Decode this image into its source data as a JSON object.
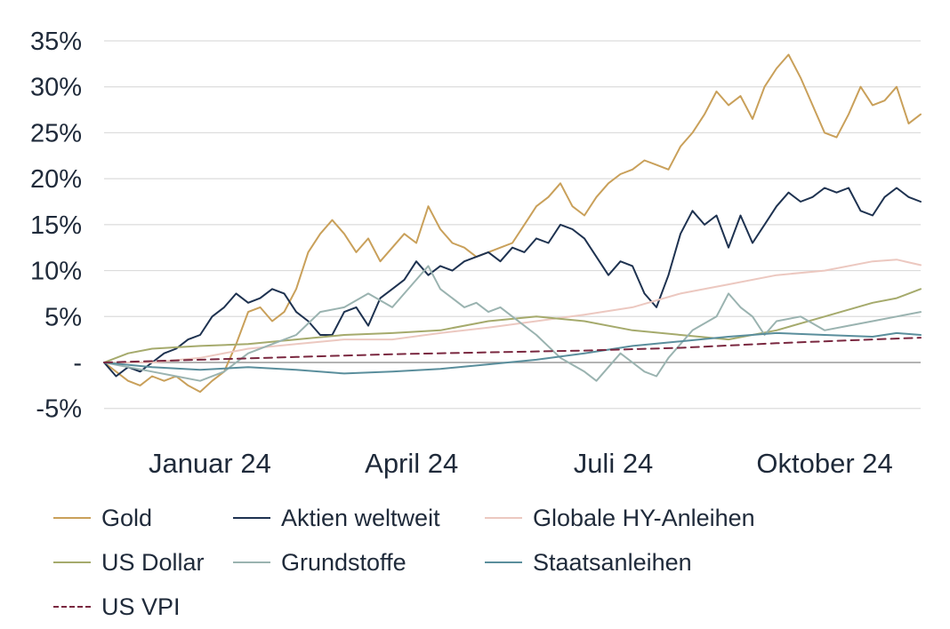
{
  "chart_data": {
    "type": "line",
    "title": "",
    "xlabel": "",
    "ylabel": "",
    "ylim": [
      -7,
      35.5
    ],
    "x_range_days": [
      0,
      340
    ],
    "y_ticks": [
      {
        "value": 35,
        "label": "35%"
      },
      {
        "value": 30,
        "label": "30%"
      },
      {
        "value": 25,
        "label": "25%"
      },
      {
        "value": 20,
        "label": "20%"
      },
      {
        "value": 15,
        "label": "15%"
      },
      {
        "value": 10,
        "label": "10%"
      },
      {
        "value": 5,
        "label": "5%"
      },
      {
        "value": 0,
        "label": "-"
      },
      {
        "value": -5,
        "label": "-5%"
      }
    ],
    "x_ticks": [
      {
        "day": 27,
        "label": "Januar 24"
      },
      {
        "day": 111,
        "label": "April 24"
      },
      {
        "day": 195,
        "label": "Juli 24"
      },
      {
        "day": 283,
        "label": "Oktober 24"
      }
    ],
    "grid": true,
    "series": [
      {
        "name": "Gold",
        "color": "#c9a05a",
        "dash": false,
        "points": [
          [
            0,
            0
          ],
          [
            5,
            -1
          ],
          [
            10,
            -2
          ],
          [
            15,
            -2.5
          ],
          [
            20,
            -1.5
          ],
          [
            25,
            -2
          ],
          [
            30,
            -1.5
          ],
          [
            35,
            -2.5
          ],
          [
            40,
            -3.2
          ],
          [
            45,
            -2
          ],
          [
            50,
            -1
          ],
          [
            55,
            2
          ],
          [
            60,
            5.5
          ],
          [
            65,
            6
          ],
          [
            70,
            4.5
          ],
          [
            75,
            5.5
          ],
          [
            80,
            8
          ],
          [
            85,
            12
          ],
          [
            90,
            14
          ],
          [
            95,
            15.5
          ],
          [
            100,
            14
          ],
          [
            105,
            12
          ],
          [
            110,
            13.5
          ],
          [
            115,
            11
          ],
          [
            120,
            12.5
          ],
          [
            125,
            14
          ],
          [
            130,
            13
          ],
          [
            135,
            17
          ],
          [
            140,
            14.5
          ],
          [
            145,
            13
          ],
          [
            150,
            12.5
          ],
          [
            155,
            11.5
          ],
          [
            160,
            12
          ],
          [
            165,
            12.5
          ],
          [
            170,
            13
          ],
          [
            175,
            15
          ],
          [
            180,
            17
          ],
          [
            185,
            18
          ],
          [
            190,
            19.5
          ],
          [
            195,
            17
          ],
          [
            200,
            16
          ],
          [
            205,
            18
          ],
          [
            210,
            19.5
          ],
          [
            215,
            20.5
          ],
          [
            220,
            21
          ],
          [
            225,
            22
          ],
          [
            230,
            21.5
          ],
          [
            235,
            21
          ],
          [
            240,
            23.5
          ],
          [
            245,
            25
          ],
          [
            250,
            27
          ],
          [
            255,
            29.5
          ],
          [
            260,
            28
          ],
          [
            265,
            29
          ],
          [
            270,
            26.5
          ],
          [
            275,
            30
          ],
          [
            280,
            32
          ],
          [
            285,
            33.5
          ],
          [
            290,
            31
          ],
          [
            295,
            28
          ],
          [
            300,
            25
          ],
          [
            305,
            24.5
          ],
          [
            310,
            27
          ],
          [
            315,
            30
          ],
          [
            320,
            28
          ],
          [
            325,
            28.5
          ],
          [
            330,
            30
          ],
          [
            335,
            26
          ],
          [
            340,
            27
          ]
        ]
      },
      {
        "name": "Aktien weltweit",
        "color": "#1e3250",
        "dash": false,
        "points": [
          [
            0,
            0
          ],
          [
            5,
            -1.5
          ],
          [
            10,
            -0.5
          ],
          [
            15,
            -1
          ],
          [
            20,
            0
          ],
          [
            25,
            1
          ],
          [
            30,
            1.5
          ],
          [
            35,
            2.5
          ],
          [
            40,
            3
          ],
          [
            45,
            5
          ],
          [
            50,
            6
          ],
          [
            55,
            7.5
          ],
          [
            60,
            6.5
          ],
          [
            65,
            7
          ],
          [
            70,
            8
          ],
          [
            75,
            7.5
          ],
          [
            80,
            5.5
          ],
          [
            85,
            4.5
          ],
          [
            90,
            3
          ],
          [
            95,
            3
          ],
          [
            100,
            5.5
          ],
          [
            105,
            6
          ],
          [
            110,
            4
          ],
          [
            115,
            7
          ],
          [
            120,
            8
          ],
          [
            125,
            9
          ],
          [
            130,
            11
          ],
          [
            135,
            9.5
          ],
          [
            140,
            10.5
          ],
          [
            145,
            10
          ],
          [
            150,
            11
          ],
          [
            155,
            11.5
          ],
          [
            160,
            12
          ],
          [
            165,
            11
          ],
          [
            170,
            12.5
          ],
          [
            175,
            12
          ],
          [
            180,
            13.5
          ],
          [
            185,
            13
          ],
          [
            190,
            15
          ],
          [
            195,
            14.5
          ],
          [
            200,
            13.5
          ],
          [
            205,
            11.5
          ],
          [
            210,
            9.5
          ],
          [
            215,
            11
          ],
          [
            220,
            10.5
          ],
          [
            225,
            7.5
          ],
          [
            230,
            6
          ],
          [
            235,
            9.5
          ],
          [
            240,
            14
          ],
          [
            245,
            16.5
          ],
          [
            250,
            15
          ],
          [
            255,
            16
          ],
          [
            260,
            12.5
          ],
          [
            265,
            16
          ],
          [
            270,
            13
          ],
          [
            275,
            15
          ],
          [
            280,
            17
          ],
          [
            285,
            18.5
          ],
          [
            290,
            17.5
          ],
          [
            295,
            18
          ],
          [
            300,
            19
          ],
          [
            305,
            18.5
          ],
          [
            310,
            19
          ],
          [
            315,
            16.5
          ],
          [
            320,
            16
          ],
          [
            325,
            18
          ],
          [
            330,
            19
          ],
          [
            335,
            18
          ],
          [
            340,
            17.5
          ]
        ]
      },
      {
        "name": "Globale HY-Anleihen",
        "color": "#ecc8c0",
        "dash": false,
        "points": [
          [
            0,
            0
          ],
          [
            20,
            0
          ],
          [
            40,
            0.5
          ],
          [
            60,
            1.5
          ],
          [
            80,
            2
          ],
          [
            100,
            2.5
          ],
          [
            120,
            2.5
          ],
          [
            140,
            3.2
          ],
          [
            160,
            3.8
          ],
          [
            180,
            4.5
          ],
          [
            200,
            5.2
          ],
          [
            220,
            6
          ],
          [
            240,
            7.5
          ],
          [
            260,
            8.5
          ],
          [
            280,
            9.5
          ],
          [
            300,
            10
          ],
          [
            320,
            11
          ],
          [
            330,
            11.2
          ],
          [
            340,
            10.6
          ]
        ]
      },
      {
        "name": "US Dollar",
        "color": "#a5aa6c",
        "dash": false,
        "points": [
          [
            0,
            0
          ],
          [
            10,
            1
          ],
          [
            20,
            1.5
          ],
          [
            40,
            1.8
          ],
          [
            60,
            2
          ],
          [
            80,
            2.5
          ],
          [
            100,
            3
          ],
          [
            120,
            3.2
          ],
          [
            140,
            3.5
          ],
          [
            160,
            4.5
          ],
          [
            180,
            5
          ],
          [
            200,
            4.5
          ],
          [
            220,
            3.5
          ],
          [
            240,
            3
          ],
          [
            260,
            2.5
          ],
          [
            280,
            3.5
          ],
          [
            300,
            5
          ],
          [
            320,
            6.5
          ],
          [
            330,
            7
          ],
          [
            340,
            8
          ]
        ]
      },
      {
        "name": "Grundstoffe",
        "color": "#9ab3b0",
        "dash": false,
        "points": [
          [
            0,
            0
          ],
          [
            10,
            -0.5
          ],
          [
            20,
            -1
          ],
          [
            30,
            -1.5
          ],
          [
            40,
            -2
          ],
          [
            50,
            -1
          ],
          [
            60,
            1
          ],
          [
            70,
            2
          ],
          [
            80,
            3
          ],
          [
            90,
            5.5
          ],
          [
            100,
            6
          ],
          [
            110,
            7.5
          ],
          [
            120,
            6
          ],
          [
            130,
            9
          ],
          [
            135,
            10.5
          ],
          [
            140,
            8
          ],
          [
            145,
            7
          ],
          [
            150,
            6
          ],
          [
            155,
            6.5
          ],
          [
            160,
            5.5
          ],
          [
            165,
            6
          ],
          [
            170,
            5
          ],
          [
            180,
            3
          ],
          [
            190,
            0.5
          ],
          [
            200,
            -1
          ],
          [
            205,
            -2
          ],
          [
            210,
            -0.5
          ],
          [
            215,
            1
          ],
          [
            220,
            0
          ],
          [
            225,
            -1
          ],
          [
            230,
            -1.5
          ],
          [
            235,
            0.5
          ],
          [
            240,
            2
          ],
          [
            245,
            3.5
          ],
          [
            255,
            5
          ],
          [
            260,
            7.5
          ],
          [
            265,
            6
          ],
          [
            270,
            5
          ],
          [
            275,
            3
          ],
          [
            280,
            4.5
          ],
          [
            290,
            5
          ],
          [
            300,
            3.5
          ],
          [
            310,
            4
          ],
          [
            320,
            4.5
          ],
          [
            330,
            5
          ],
          [
            340,
            5.5
          ]
        ]
      },
      {
        "name": "Staatsanleihen",
        "color": "#5a8e9c",
        "dash": false,
        "points": [
          [
            0,
            0
          ],
          [
            20,
            -0.5
          ],
          [
            40,
            -0.8
          ],
          [
            60,
            -0.5
          ],
          [
            80,
            -0.8
          ],
          [
            100,
            -1.2
          ],
          [
            120,
            -1
          ],
          [
            140,
            -0.7
          ],
          [
            160,
            -0.2
          ],
          [
            180,
            0.3
          ],
          [
            200,
            1
          ],
          [
            220,
            1.8
          ],
          [
            240,
            2.3
          ],
          [
            260,
            2.8
          ],
          [
            280,
            3.2
          ],
          [
            300,
            3
          ],
          [
            320,
            2.8
          ],
          [
            330,
            3.2
          ],
          [
            340,
            3
          ]
        ]
      },
      {
        "name": "US VPI",
        "color": "#7a2840",
        "dash": true,
        "points": [
          [
            0,
            0
          ],
          [
            40,
            0.3
          ],
          [
            80,
            0.6
          ],
          [
            120,
            0.9
          ],
          [
            160,
            1.1
          ],
          [
            200,
            1.3
          ],
          [
            240,
            1.6
          ],
          [
            280,
            2.1
          ],
          [
            320,
            2.5
          ],
          [
            340,
            2.7
          ]
        ]
      }
    ]
  },
  "legend": [
    {
      "label": "Gold",
      "color": "#c9a05a",
      "style": "solid"
    },
    {
      "label": "Aktien weltweit",
      "color": "#1e3250",
      "style": "solid"
    },
    {
      "label": "Globale HY-Anleihen",
      "color": "#ecc8c0",
      "style": "solid"
    },
    {
      "label": "US Dollar",
      "color": "#a5aa6c",
      "style": "solid"
    },
    {
      "label": "Grundstoffe",
      "color": "#9ab3b0",
      "style": "solid"
    },
    {
      "label": "Staatsanleihen",
      "color": "#5a8e9c",
      "style": "solid"
    },
    {
      "label": "US VPI",
      "color": "#7a2840",
      "style": "dashed"
    }
  ],
  "colors": {
    "grid": "#dcdcdc",
    "zero_line": "#9a9a9a",
    "text": "#1f2a3a"
  }
}
